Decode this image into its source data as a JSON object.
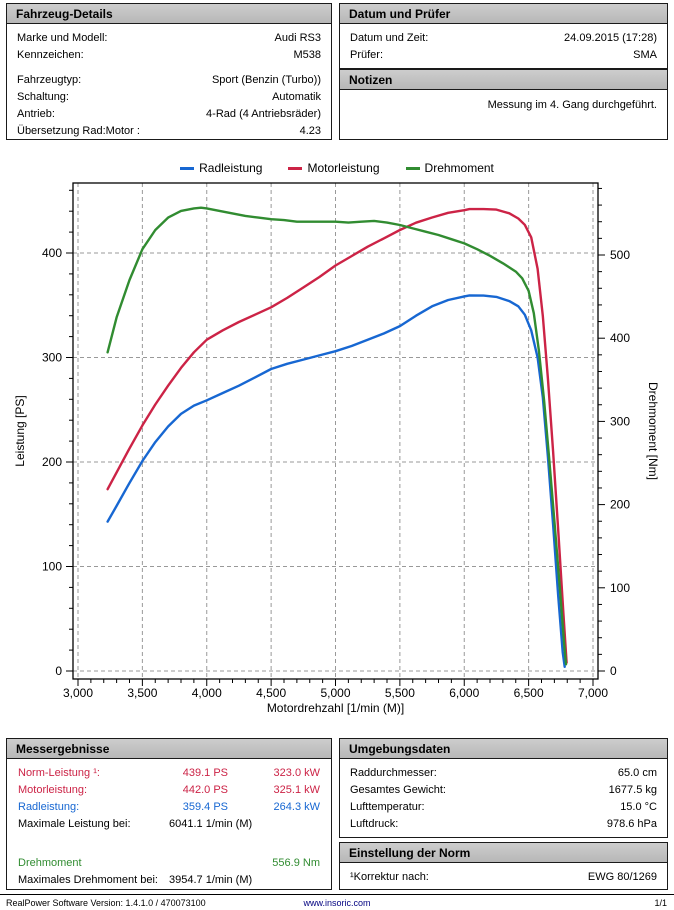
{
  "colors": {
    "rad": "#1767d2",
    "motor": "#cc2346",
    "dreh": "#318c31",
    "header_bg": "#c3c3c3",
    "grid": "#999999",
    "link": "#000080"
  },
  "panels": {
    "fahrzeug": {
      "title": "Fahrzeug-Details",
      "rows": [
        {
          "label": "Marke und Modell:",
          "value": "Audi RS3"
        },
        {
          "label": "Kennzeichen:",
          "value": "M538"
        },
        {
          "spacer": true
        },
        {
          "label": "Fahrzeugtyp:",
          "value": "Sport (Benzin (Turbo))"
        },
        {
          "label": "Schaltung:",
          "value": "Automatik"
        },
        {
          "label": "Antrieb:",
          "value": "4-Rad (4 Antriebsräder)"
        },
        {
          "label": "Übersetzung Rad:Motor :",
          "value": "4.23"
        }
      ]
    },
    "datum": {
      "title": "Datum und Prüfer",
      "rows": [
        {
          "label": "Datum und Zeit:",
          "value": "24.09.2015 (17:28)"
        },
        {
          "label": "Prüfer:",
          "value": "SMA"
        }
      ]
    },
    "notizen": {
      "title": "Notizen",
      "text": "Messung im 4. Gang durchgeführt."
    },
    "messergebnisse": {
      "title": "Messergebnisse",
      "rows": [
        {
          "label": "Norm-Leistung ¹:",
          "col2": "439.1 PS",
          "col3": "323.0 kW",
          "color": "motor"
        },
        {
          "label": "Motorleistung:",
          "col2": "442.0 PS",
          "col3": "325.1 kW",
          "color": "motor"
        },
        {
          "label": "Radleistung:",
          "col2": "359.4 PS",
          "col3": "264.3 kW",
          "color": "rad"
        },
        {
          "label": "Maximale Leistung bei:",
          "col2": "6041.1 1/min (M)",
          "col3": "",
          "color": ""
        },
        {
          "spacer": true
        },
        {
          "label": "Drehmoment",
          "col2": "",
          "col3": "556.9 Nm",
          "color": "dreh"
        },
        {
          "label": "Maximales Drehmoment bei:",
          "col2": "3954.7 1/min (M)",
          "col3": "",
          "color": ""
        }
      ]
    },
    "umgebung": {
      "title": "Umgebungsdaten",
      "rows": [
        {
          "label": "Raddurchmesser:",
          "value": "65.0 cm"
        },
        {
          "label": "Gesamtes Gewicht:",
          "value": "1677.5 kg"
        },
        {
          "label": "Lufttemperatur:",
          "value": "15.0 °C"
        },
        {
          "label": "Luftdruck:",
          "value": "978.6 hPa"
        }
      ]
    },
    "norm": {
      "title": "Einstellung der Norm",
      "rows": [
        {
          "label": "¹Korrektur nach:",
          "value": "EWG 80/1269"
        }
      ]
    }
  },
  "footer": {
    "left": "RealPower Software Version: 1.4.1.0 / 470073100",
    "center": "www.insoric.com",
    "right": "1/1"
  },
  "chart_data": {
    "type": "line",
    "title": "",
    "xlabel": "Motordrehzahl [1/min (M)]",
    "ylabel_left": "Leistung [PS]",
    "ylabel_right": "Drehmoment [Nm]",
    "xlim": [
      3000,
      7000
    ],
    "x_major_step": 500,
    "x_minor_step": 100,
    "ylim_left": [
      0,
      467
    ],
    "y_left_label_max": 400,
    "y_left_major_step": 100,
    "y_left_minor_step": 20,
    "ylim_right": [
      0,
      588
    ],
    "y_right_label_max": 500,
    "y_right_major_step": 100,
    "y_right_minor_step": 20,
    "grid": true,
    "legend_position": "top-center",
    "series": [
      {
        "name": "Radleistung",
        "axis": "left",
        "unit": "PS",
        "color": "#1767d2",
        "peak": {
          "value": 359.4,
          "rpm": 6041.1
        },
        "points": [
          [
            3230,
            143
          ],
          [
            3300,
            158
          ],
          [
            3400,
            180
          ],
          [
            3500,
            201
          ],
          [
            3600,
            219
          ],
          [
            3700,
            234
          ],
          [
            3800,
            246
          ],
          [
            3900,
            254
          ],
          [
            4000,
            259
          ],
          [
            4125,
            266
          ],
          [
            4250,
            273
          ],
          [
            4375,
            281
          ],
          [
            4500,
            289
          ],
          [
            4625,
            294
          ],
          [
            4750,
            298
          ],
          [
            4875,
            302
          ],
          [
            5000,
            306
          ],
          [
            5125,
            311
          ],
          [
            5250,
            317
          ],
          [
            5375,
            323
          ],
          [
            5500,
            330
          ],
          [
            5625,
            340
          ],
          [
            5750,
            349
          ],
          [
            5875,
            355
          ],
          [
            6000,
            358.5
          ],
          [
            6041,
            359.4
          ],
          [
            6150,
            359.2
          ],
          [
            6250,
            358
          ],
          [
            6350,
            354
          ],
          [
            6420,
            349
          ],
          [
            6470,
            341
          ],
          [
            6520,
            326
          ],
          [
            6570,
            300
          ],
          [
            6610,
            262
          ],
          [
            6650,
            205
          ],
          [
            6690,
            140
          ],
          [
            6730,
            72
          ],
          [
            6765,
            18
          ],
          [
            6780,
            4
          ]
        ]
      },
      {
        "name": "Motorleistung",
        "axis": "left",
        "unit": "PS",
        "color": "#cc2346",
        "peak": {
          "value": 442.0,
          "rpm": 6041.1
        },
        "points": [
          [
            3230,
            174
          ],
          [
            3300,
            190
          ],
          [
            3400,
            213
          ],
          [
            3500,
            235
          ],
          [
            3600,
            255
          ],
          [
            3700,
            273
          ],
          [
            3800,
            290
          ],
          [
            3900,
            305
          ],
          [
            4000,
            317
          ],
          [
            4125,
            326
          ],
          [
            4250,
            334
          ],
          [
            4375,
            341
          ],
          [
            4500,
            348
          ],
          [
            4625,
            357
          ],
          [
            4750,
            367
          ],
          [
            4875,
            377
          ],
          [
            5000,
            388
          ],
          [
            5125,
            397
          ],
          [
            5250,
            406
          ],
          [
            5375,
            414
          ],
          [
            5500,
            422
          ],
          [
            5625,
            429
          ],
          [
            5750,
            434
          ],
          [
            5875,
            438.5
          ],
          [
            6000,
            441
          ],
          [
            6041,
            442
          ],
          [
            6150,
            442
          ],
          [
            6250,
            441.5
          ],
          [
            6350,
            438
          ],
          [
            6420,
            433
          ],
          [
            6470,
            427
          ],
          [
            6520,
            415
          ],
          [
            6570,
            385
          ],
          [
            6610,
            340
          ],
          [
            6650,
            280
          ],
          [
            6690,
            210
          ],
          [
            6730,
            135
          ],
          [
            6770,
            55
          ],
          [
            6795,
            8
          ]
        ]
      },
      {
        "name": "Drehmoment",
        "axis": "right",
        "unit": "Nm",
        "color": "#318c31",
        "peak": {
          "value": 556.9,
          "rpm": 3954.7
        },
        "points": [
          [
            3230,
            383
          ],
          [
            3300,
            425
          ],
          [
            3400,
            470
          ],
          [
            3500,
            507
          ],
          [
            3600,
            530
          ],
          [
            3700,
            545
          ],
          [
            3800,
            553
          ],
          [
            3900,
            556
          ],
          [
            3955,
            556.9
          ],
          [
            4000,
            556
          ],
          [
            4100,
            553
          ],
          [
            4200,
            550
          ],
          [
            4300,
            547
          ],
          [
            4400,
            545
          ],
          [
            4500,
            543
          ],
          [
            4600,
            542
          ],
          [
            4700,
            540
          ],
          [
            4800,
            540
          ],
          [
            4900,
            540
          ],
          [
            5000,
            540
          ],
          [
            5100,
            539
          ],
          [
            5200,
            540
          ],
          [
            5300,
            541
          ],
          [
            5400,
            539
          ],
          [
            5500,
            536
          ],
          [
            5600,
            532
          ],
          [
            5700,
            528
          ],
          [
            5800,
            524
          ],
          [
            5900,
            519
          ],
          [
            6000,
            514
          ],
          [
            6100,
            507
          ],
          [
            6200,
            499
          ],
          [
            6300,
            490
          ],
          [
            6400,
            480
          ],
          [
            6450,
            472
          ],
          [
            6500,
            457
          ],
          [
            6540,
            430
          ],
          [
            6580,
            385
          ],
          [
            6620,
            325
          ],
          [
            6660,
            255
          ],
          [
            6700,
            180
          ],
          [
            6740,
            105
          ],
          [
            6775,
            35
          ],
          [
            6790,
            8
          ]
        ]
      }
    ]
  }
}
